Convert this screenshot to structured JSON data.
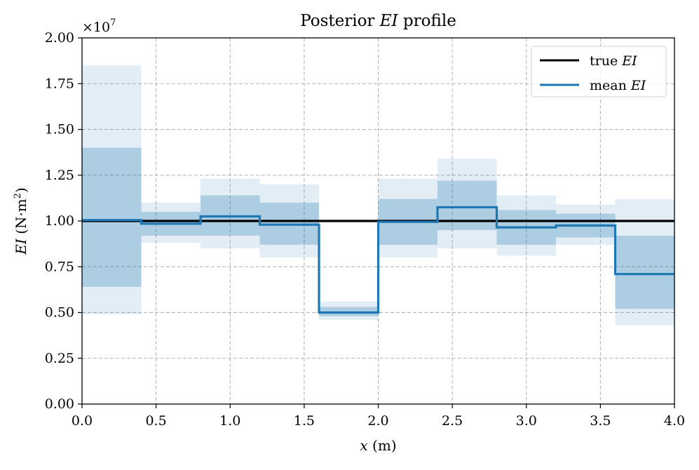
{
  "chart_data": {
    "type": "step",
    "title": "Posterior EI profile",
    "title_prefix": "Posterior ",
    "title_math": "EI",
    "title_suffix": " profile",
    "xlabel": "x (m)",
    "xlabel_math": "x",
    "xlabel_unit": " (m)",
    "ylabel": "EI (N·m²)",
    "ylabel_math": "EI",
    "ylabel_unit_open": " (N·m",
    "ylabel_unit_sup": "2",
    "ylabel_unit_close": ")",
    "y_scale_prefix": "×10",
    "y_scale_exponent": "7",
    "xlim": [
      0.0,
      4.0
    ],
    "ylim": [
      0.0,
      2.0
    ],
    "y_multiplier": 10000000,
    "x_ticks": [
      "0.0",
      "0.5",
      "1.0",
      "1.5",
      "2.0",
      "2.5",
      "3.0",
      "3.5",
      "4.0"
    ],
    "y_ticks": [
      "0.00",
      "0.25",
      "0.50",
      "0.75",
      "1.00",
      "1.25",
      "1.50",
      "1.75",
      "2.00"
    ],
    "grid": true,
    "legend_position": "top-right",
    "segment_edges": [
      0.0,
      0.4,
      0.8,
      1.2,
      1.6,
      2.0,
      2.4,
      2.8,
      3.2,
      3.6,
      4.0
    ],
    "series": [
      {
        "name": "true EI",
        "name_prefix": "true ",
        "name_math": "EI",
        "color": "#000000",
        "values": [
          1.0,
          1.0,
          1.0,
          1.0,
          1.0,
          1.0,
          1.0,
          1.0,
          1.0,
          1.0
        ]
      },
      {
        "name": "mean EI",
        "name_prefix": "mean ",
        "name_math": "EI",
        "color": "#1f77b4",
        "values": [
          1.005,
          0.985,
          1.025,
          0.98,
          0.5,
          0.995,
          1.075,
          0.965,
          0.975,
          0.71
        ]
      }
    ],
    "bands": [
      {
        "kind": "outer",
        "color": "#1f77b4",
        "opacity": 0.13,
        "lower": [
          0.49,
          0.88,
          0.85,
          0.8,
          0.46,
          0.8,
          0.85,
          0.81,
          0.87,
          0.43
        ],
        "upper": [
          1.85,
          1.1,
          1.23,
          1.2,
          0.56,
          1.23,
          1.34,
          1.14,
          1.09,
          1.12
        ]
      },
      {
        "kind": "inner",
        "color": "#1f77b4",
        "opacity": 0.27,
        "lower": [
          0.64,
          0.92,
          0.92,
          0.87,
          0.48,
          0.87,
          0.95,
          0.87,
          0.91,
          0.52
        ],
        "upper": [
          1.4,
          1.05,
          1.14,
          1.1,
          0.53,
          1.12,
          1.22,
          1.06,
          1.04,
          0.92
        ]
      }
    ]
  }
}
